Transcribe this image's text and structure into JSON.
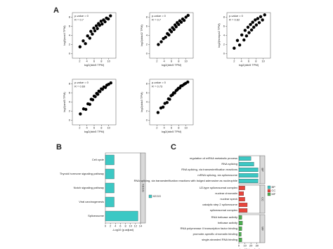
{
  "panel_labels": [
    "A",
    "B",
    "C"
  ],
  "chart_data": [
    {
      "type": "scatter",
      "xlabel": "log2(ddx5 TPM)",
      "ylabel": "log2(sox4 TPM)",
      "annotations": [
        "p-value = 0",
        "R = 0.7"
      ],
      "color": "#000000",
      "xlim": [
        0,
        12
      ],
      "ylim": [
        -1,
        9
      ],
      "xticks": [
        2,
        4,
        6,
        8,
        10
      ],
      "yticks": [
        0,
        2,
        4,
        6,
        8
      ],
      "x": [
        2.1,
        3.0,
        3.6,
        4.2,
        4.8,
        5.1,
        5.5,
        5.9,
        6.2,
        6.6,
        6.9,
        7.2,
        7.5,
        7.9,
        8.2,
        8.6,
        9.0,
        9.4,
        9.9,
        10.5
      ],
      "y": [
        1.5,
        2.8,
        2.2,
        3.9,
        3.4,
        4.9,
        4.3,
        5.6,
        5.0,
        6.1,
        5.5,
        6.6,
        6.2,
        7.1,
        6.5,
        7.4,
        7.0,
        7.8,
        7.6,
        8.3
      ]
    },
    {
      "type": "scatter",
      "xlabel": "log2(ddx5 TPM)",
      "ylabel": "log2(ddx42 TPM)",
      "annotations": [
        "p-value = 0",
        "R = 0.7"
      ],
      "color": "#000000",
      "xlim": [
        0,
        12
      ],
      "ylim": [
        -1,
        9
      ],
      "xticks": [
        2,
        4,
        6,
        8,
        10
      ],
      "yticks": [
        0,
        2,
        4,
        6,
        8
      ],
      "x": [
        2.4,
        3.2,
        3.8,
        4.4,
        4.9,
        5.3,
        5.6,
        6.0,
        6.3,
        6.7,
        7.0,
        7.3,
        7.6,
        8.0,
        8.3,
        8.7,
        9.1,
        9.5,
        10.0,
        10.6
      ],
      "y": [
        2.0,
        2.6,
        3.3,
        3.6,
        4.4,
        4.1,
        5.2,
        4.8,
        5.7,
        5.3,
        6.3,
        5.9,
        6.8,
        6.4,
        7.2,
        6.9,
        7.6,
        7.3,
        8.0,
        8.4
      ]
    },
    {
      "type": "scatter",
      "xlabel": "log2(ddx5 TPM)",
      "ylabel": "log2(hnrnpa2 TPM)",
      "annotations": [
        "p-value = 0",
        "R = 0.62"
      ],
      "color": "#000000",
      "xlim": [
        0,
        12
      ],
      "ylim": [
        -1,
        9
      ],
      "xticks": [
        2,
        4,
        6,
        8,
        10
      ],
      "yticks": [
        0,
        2,
        4,
        6,
        8
      ],
      "x": [
        2.0,
        2.9,
        3.5,
        4.1,
        4.7,
        5.0,
        5.4,
        5.8,
        6.1,
        6.5,
        6.8,
        7.1,
        7.4,
        7.8,
        8.1,
        8.5,
        8.9,
        9.3,
        9.8,
        10.4
      ],
      "y": [
        1.2,
        2.9,
        1.9,
        4.1,
        3.0,
        5.1,
        3.9,
        5.8,
        4.6,
        6.4,
        5.2,
        6.9,
        5.8,
        7.4,
        6.3,
        7.7,
        6.8,
        8.1,
        7.4,
        8.5
      ]
    },
    {
      "type": "scatter",
      "xlabel": "log2(ddx5 TPM)",
      "ylabel": "log2(srsf3 TPM)",
      "annotations": [
        "p-value = 0",
        "R = 0.69"
      ],
      "color": "#000000",
      "xlim": [
        0,
        12
      ],
      "ylim": [
        -1,
        9
      ],
      "xticks": [
        2,
        4,
        6,
        8,
        10
      ],
      "yticks": [
        0,
        2,
        4,
        6,
        8
      ],
      "x": [
        2.2,
        3.1,
        3.7,
        4.3,
        4.8,
        5.2,
        5.6,
        6.0,
        6.3,
        6.7,
        7.0,
        7.3,
        7.6,
        8.0,
        8.3,
        8.7,
        9.1,
        9.5,
        10.0,
        10.6
      ],
      "y": [
        1.4,
        2.5,
        2.4,
        3.6,
        3.5,
        4.6,
        4.5,
        5.3,
        5.2,
        5.9,
        5.7,
        6.4,
        6.3,
        6.9,
        6.8,
        7.3,
        7.2,
        7.7,
        7.9,
        8.2
      ]
    },
    {
      "type": "scatter",
      "xlabel": "log2(ddx5 TPM)",
      "ylabel": "log2(ddx3 TPM)",
      "annotations": [
        "p-value = 0",
        "R = 0.73"
      ],
      "color": "#000000",
      "xlim": [
        0,
        12
      ],
      "ylim": [
        -1,
        9
      ],
      "xticks": [
        2,
        4,
        6,
        8,
        10
      ],
      "yticks": [
        0,
        2,
        4,
        6,
        8
      ],
      "x": [
        2.3,
        3.1,
        3.7,
        4.2,
        4.8,
        5.2,
        5.5,
        5.9,
        6.3,
        6.6,
        6.9,
        7.3,
        7.6,
        7.9,
        8.3,
        8.6,
        9.0,
        9.5,
        9.9,
        10.5
      ],
      "y": [
        1.7,
        2.7,
        2.9,
        3.7,
        3.9,
        4.7,
        4.6,
        5.4,
        5.6,
        6.0,
        6.0,
        6.5,
        6.7,
        7.0,
        7.1,
        7.5,
        7.6,
        7.9,
        8.1,
        8.4
      ]
    },
    {
      "type": "bar",
      "orientation": "horizontal",
      "xlabel": "-Log10 (p.adjust)",
      "xlim": [
        0,
        14
      ],
      "xticks": [
        0,
        2,
        4,
        6,
        8,
        10,
        12,
        14
      ],
      "series": [
        {
          "name": "KEGG",
          "color": "#3cc8c4",
          "categories": [
            "Cell cycle",
            "Thyroid hormone signaling pathway",
            "Notch signaling pathway",
            "Viral carcinogenesis",
            "Spliceosome"
          ],
          "values": [
            3.5,
            3.5,
            3.5,
            3.5,
            13
          ]
        }
      ]
    },
    {
      "type": "bar",
      "orientation": "horizontal",
      "xlabel": "-Log10 (p.adjust)",
      "xlim": [
        0,
        35
      ],
      "xticks": [
        0,
        10,
        20,
        30
      ],
      "series": [
        {
          "name": "BP",
          "color": "#3cc8c4",
          "categories": [
            "regulation of mRNA metabolic process",
            "RNA splicing",
            "RNA splicing, via transesterification reactions",
            "mRNA splicing, via spliceosome",
            "RNA splicing, via transesterification reactions with bulged adenosine as nucleophile"
          ],
          "values": [
            20,
            25,
            32,
            32,
            32
          ]
        },
        {
          "name": "CC",
          "color": "#e8453c",
          "categories": [
            "U2-type spliceosomal complex",
            "nuclear chromatin",
            "nuclear speck",
            "catalytic step 2 spliceosome",
            "spliceosomal complex"
          ],
          "values": [
            10,
            8,
            10,
            14,
            14
          ]
        },
        {
          "name": "MF",
          "color": "#4caf50",
          "categories": [
            "RNA helicase activity",
            "helicase activity",
            "RNA polymerase II transcription factor binding",
            "promoter-specific chromatin binding",
            "single-stranded RNA binding"
          ],
          "values": [
            5,
            6,
            5,
            4,
            5
          ]
        }
      ]
    }
  ]
}
